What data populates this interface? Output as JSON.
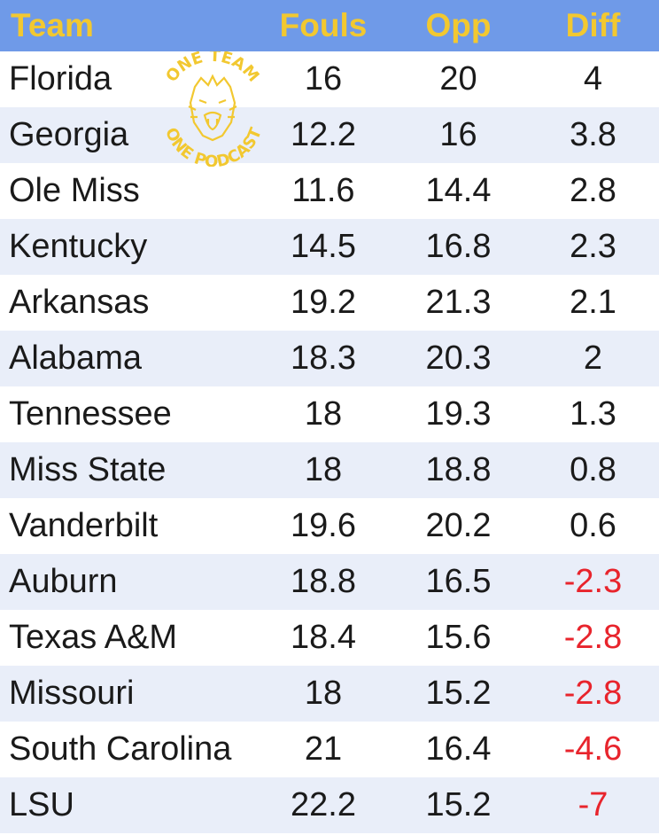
{
  "columns": {
    "team": "Team",
    "fouls": "Fouls",
    "opp": "Opp",
    "diff": "Diff"
  },
  "logo": {
    "top_text": "ONE TEAM",
    "bottom_text": "ONE PODCAST",
    "color": "#f2c830"
  },
  "colors": {
    "header_bg": "#6f9ae8",
    "header_text": "#f2c830",
    "alt_row": "#e9eef9",
    "negative": "#e8242c"
  },
  "rows": [
    {
      "team": "Florida",
      "fouls": "16",
      "opp": "20",
      "diff": "4"
    },
    {
      "team": "Georgia",
      "fouls": "12.2",
      "opp": "16",
      "diff": "3.8"
    },
    {
      "team": "Ole Miss",
      "fouls": "11.6",
      "opp": "14.4",
      "diff": "2.8"
    },
    {
      "team": "Kentucky",
      "fouls": "14.5",
      "opp": "16.8",
      "diff": "2.3"
    },
    {
      "team": "Arkansas",
      "fouls": "19.2",
      "opp": "21.3",
      "diff": "2.1"
    },
    {
      "team": "Alabama",
      "fouls": "18.3",
      "opp": "20.3",
      "diff": "2"
    },
    {
      "team": "Tennessee",
      "fouls": "18",
      "opp": "19.3",
      "diff": "1.3"
    },
    {
      "team": "Miss State",
      "fouls": "18",
      "opp": "18.8",
      "diff": "0.8"
    },
    {
      "team": "Vanderbilt",
      "fouls": "19.6",
      "opp": "20.2",
      "diff": "0.6"
    },
    {
      "team": "Auburn",
      "fouls": "18.8",
      "opp": "16.5",
      "diff": "-2.3"
    },
    {
      "team": "Texas A&M",
      "fouls": "18.4",
      "opp": "15.6",
      "diff": "-2.8"
    },
    {
      "team": "Missouri",
      "fouls": "18",
      "opp": "15.2",
      "diff": "-2.8"
    },
    {
      "team": "South Carolina",
      "fouls": "21",
      "opp": "16.4",
      "diff": "-4.6"
    },
    {
      "team": "LSU",
      "fouls": "22.2",
      "opp": "15.2",
      "diff": "-7"
    }
  ]
}
